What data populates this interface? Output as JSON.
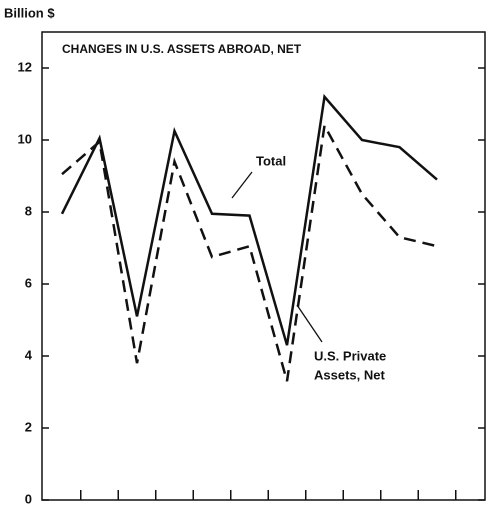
{
  "chart_data": {
    "type": "line",
    "title": "CHANGES IN U.S. ASSETS ABROAD, NET",
    "y_label": "Billion $",
    "categories": [
      null,
      null,
      null,
      null,
      null,
      null,
      null,
      null,
      null,
      null,
      null
    ],
    "series": [
      {
        "name": "Total",
        "color": "#111111",
        "dash": "solid",
        "values": [
          7.95,
          10.05,
          5.1,
          10.25,
          7.95,
          7.9,
          4.3,
          11.2,
          10.0,
          9.8,
          8.9
        ]
      },
      {
        "name": "U.S. Private Assets, Net",
        "color": "#111111",
        "dash": "dashed",
        "values": [
          9.05,
          9.95,
          3.8,
          9.4,
          6.75,
          7.05,
          3.3,
          10.4,
          8.5,
          7.3,
          7.05
        ]
      }
    ],
    "annotations": [
      "Total",
      "U.S. Private",
      "Assets, Net"
    ],
    "ylim": [
      0,
      13
    ],
    "yticks": [
      0,
      2,
      4,
      6,
      8,
      10,
      12
    ],
    "grid": false
  }
}
